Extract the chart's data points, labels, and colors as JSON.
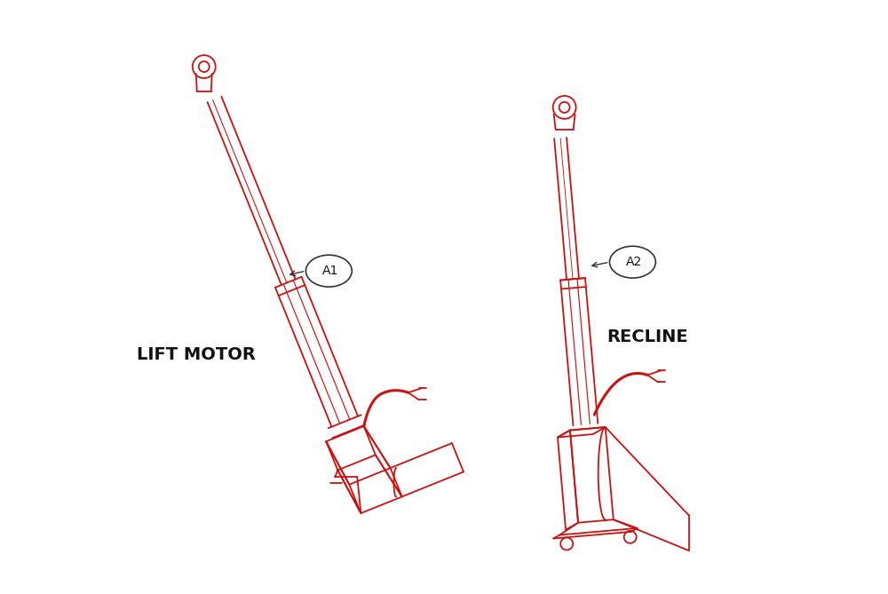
{
  "bg_color": "#ffffff",
  "line_color": "#cc1111",
  "label_color": "#111111",
  "lift_motor_label": "LIFT MOTOR",
  "recline_label": "RECLINE",
  "a1_label": "A1",
  "a2_label": "A2",
  "figsize": [
    10.0,
    6.69
  ],
  "dpi": 100
}
